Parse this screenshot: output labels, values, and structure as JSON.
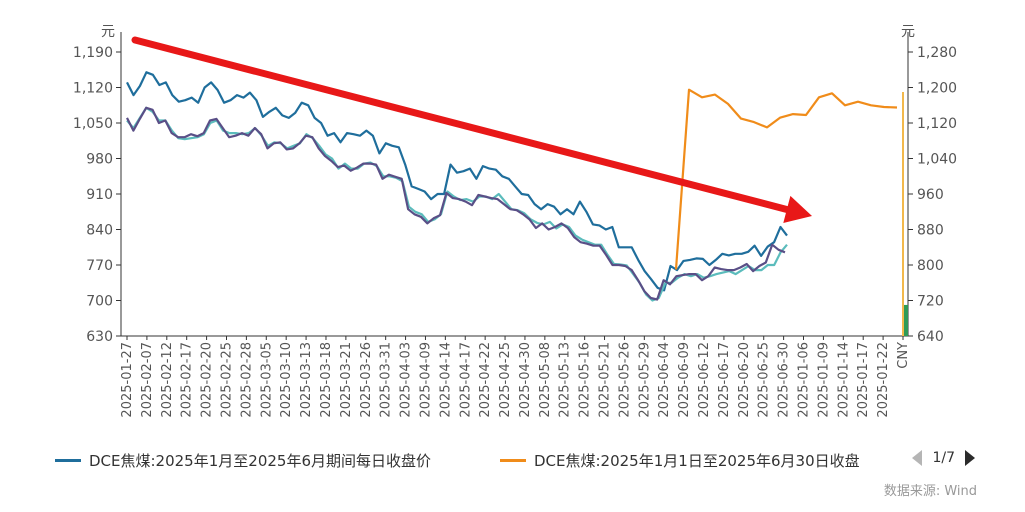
{
  "chart_data": {
    "type": "line",
    "y_unit_left": "元",
    "y_unit_right": "元",
    "left_axis": {
      "ylim": [
        630,
        1190
      ],
      "ticks": [
        630,
        700,
        770,
        840,
        910,
        980,
        1050,
        1120,
        1190
      ]
    },
    "right_axis": {
      "ylim": [
        640,
        1280
      ],
      "ticks": [
        640,
        720,
        800,
        880,
        960,
        1040,
        1120,
        1200,
        1280
      ]
    },
    "x_tick_labels": [
      "2025-01-27",
      "2025-02-07",
      "2025-02-12",
      "2025-02-17",
      "2025-02-20",
      "2025-02-25",
      "2025-02-28",
      "2025-03-05",
      "2025-03-10",
      "2025-03-13",
      "2025-03-18",
      "2025-03-21",
      "2025-03-26",
      "2025-03-31",
      "2025-04-03",
      "2025-04-09",
      "2025-04-14",
      "2025-04-17",
      "2025-04-22",
      "2025-04-25",
      "2025-04-30",
      "2025-05-08",
      "2025-05-13",
      "2025-05-16",
      "2025-05-21",
      "2025-05-26",
      "2025-05-29",
      "2025-06-04",
      "2025-06-09",
      "2025-06-12",
      "2025-06-17",
      "2025-06-20",
      "2025-06-25",
      "2025-06-30",
      "2025-01-06",
      "2025-01-09",
      "2025-01-14",
      "2025-01-17",
      "2025-01-22",
      "CNY"
    ],
    "grid": false,
    "series": [
      {
        "name": "DCE焦煤:2025年1月至2025年6月期间每日收盘价",
        "color": "#1f6e9c",
        "axis": "left",
        "values": [
          1130,
          1105,
          1123,
          1150,
          1145,
          1125,
          1130,
          1105,
          1092,
          1095,
          1100,
          1090,
          1120,
          1130,
          1115,
          1090,
          1095,
          1105,
          1100,
          1110,
          1095,
          1062,
          1072,
          1080,
          1065,
          1060,
          1070,
          1090,
          1085,
          1060,
          1050,
          1025,
          1030,
          1012,
          1030,
          1028,
          1025,
          1035,
          1025,
          990,
          1010,
          1005,
          1002,
          968,
          925,
          920,
          915,
          900,
          910,
          910,
          968,
          952,
          955,
          960,
          940,
          965,
          960,
          958,
          945,
          940,
          925,
          910,
          908,
          890,
          880,
          890,
          885,
          870,
          880,
          870,
          895,
          875,
          850,
          848,
          840,
          845,
          805,
          805,
          805,
          780,
          758,
          742,
          725,
          720,
          768,
          760,
          778,
          780,
          783,
          782,
          770,
          780,
          792,
          789,
          792,
          792,
          796,
          808,
          788,
          806,
          815,
          845,
          828
        ],
        "start_index": 0
      },
      {
        "name": "DCE焦煤:2025年1月1日至2025年6月30日收盘",
        "color": "#f08c1a",
        "axis": "right",
        "values": [
          790,
          1195,
          1178,
          1184,
          1163,
          1130,
          1122,
          1110,
          1132,
          1140,
          1138,
          1178,
          1187,
          1160,
          1168,
          1160,
          1156,
          1155
        ],
        "start_index": 0
      },
      {
        "name": "",
        "color": "#5bbcbc",
        "axis": "left",
        "values": [
          1055,
          1040,
          1060,
          1080,
          1072,
          1055,
          1055,
          1035,
          1020,
          1018,
          1020,
          1022,
          1028,
          1050,
          1055,
          1035,
          1030,
          1030,
          1028,
          1030,
          1040,
          1025,
          1005,
          1012,
          1010,
          1000,
          1005,
          1010,
          1028,
          1020,
          1005,
          988,
          980,
          960,
          970,
          960,
          960,
          970,
          972,
          965,
          945,
          945,
          942,
          935,
          885,
          875,
          870,
          855,
          860,
          870,
          915,
          905,
          898,
          900,
          895,
          905,
          905,
          900,
          910,
          895,
          880,
          878,
          872,
          860,
          853,
          850,
          855,
          842,
          850,
          845,
          828,
          820,
          815,
          810,
          810,
          790,
          772,
          771,
          769,
          752,
          735,
          712,
          700,
          705,
          735,
          735,
          745,
          752,
          748,
          752,
          745,
          748,
          752,
          755,
          758,
          752,
          760,
          768,
          760,
          760,
          770,
          770,
          795,
          810
        ],
        "start_index": 0
      },
      {
        "name": "",
        "color": "#5a4f87",
        "axis": "left",
        "values": [
          1060,
          1035,
          1058,
          1080,
          1076,
          1050,
          1055,
          1030,
          1022,
          1022,
          1028,
          1024,
          1030,
          1055,
          1058,
          1040,
          1022,
          1025,
          1030,
          1025,
          1040,
          1028,
          1000,
          1010,
          1012,
          998,
          1000,
          1010,
          1025,
          1022,
          1000,
          985,
          975,
          963,
          966,
          956,
          962,
          970,
          970,
          968,
          940,
          948,
          944,
          940,
          880,
          870,
          865,
          852,
          862,
          868,
          912,
          902,
          900,
          895,
          888,
          908,
          905,
          902,
          900,
          890,
          880,
          878,
          870,
          860,
          843,
          852,
          840,
          845,
          852,
          843,
          825,
          815,
          812,
          808,
          808,
          790,
          770,
          770,
          768,
          760,
          740,
          718,
          705,
          702,
          740,
          732,
          748,
          750,
          752,
          752,
          740,
          748,
          765,
          762,
          760,
          760,
          765,
          772,
          758,
          768,
          775,
          810,
          800,
          795
        ],
        "start_index": 0
      }
    ],
    "bar": {
      "axis": "right",
      "value": 710,
      "color": "#2f9a57"
    },
    "vline": {
      "axis": "right",
      "value": 1190,
      "color": "#f2b84b"
    },
    "annotation": {
      "type": "arrow",
      "color": "#e81818"
    }
  },
  "legend": {
    "item1": "DCE焦煤:2025年1月至2025年6月期间每日收盘价",
    "item2": "DCE焦煤:2025年1月1日至2025年6月30日收盘",
    "page": "1/7"
  },
  "source": "数据来源: Wind"
}
